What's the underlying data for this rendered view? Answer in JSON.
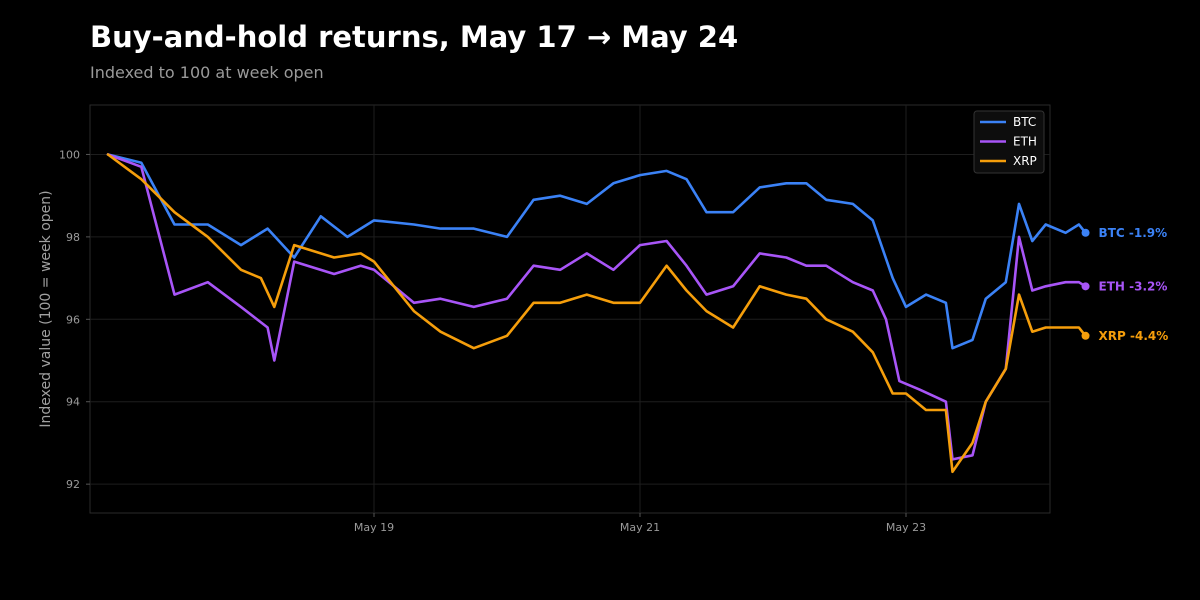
{
  "chart_data": {
    "type": "line",
    "title": "Buy-and-hold returns, May 17 → May 24",
    "subtitle": "Indexed to 100 at week open",
    "ylabel": "Indexed value (100 = week open)",
    "xlabel": "",
    "x_range_days": [
      0,
      7
    ],
    "ylim": [
      91.3,
      101.2
    ],
    "yticks": [
      92,
      94,
      96,
      98,
      100
    ],
    "xticks": [
      {
        "label": "May 19",
        "day": 2
      },
      {
        "label": "May 21",
        "day": 4
      },
      {
        "label": "May 23",
        "day": 6
      }
    ],
    "grid": true,
    "legend_position": "top-right",
    "series": [
      {
        "name": "BTC",
        "color": "#3b82f6",
        "end_label": "BTC -1.9%",
        "points": [
          [
            0,
            100
          ],
          [
            0.25,
            99.8
          ],
          [
            0.5,
            98.3
          ],
          [
            0.75,
            98.3
          ],
          [
            1,
            97.8
          ],
          [
            1.2,
            98.2
          ],
          [
            1.4,
            97.5
          ],
          [
            1.6,
            98.5
          ],
          [
            1.8,
            98.0
          ],
          [
            2,
            98.4
          ],
          [
            2.3,
            98.3
          ],
          [
            2.5,
            98.2
          ],
          [
            2.75,
            98.2
          ],
          [
            3,
            98.0
          ],
          [
            3.2,
            98.9
          ],
          [
            3.4,
            99.0
          ],
          [
            3.6,
            98.8
          ],
          [
            3.8,
            99.3
          ],
          [
            4,
            99.5
          ],
          [
            4.2,
            99.6
          ],
          [
            4.35,
            99.4
          ],
          [
            4.5,
            98.6
          ],
          [
            4.7,
            98.6
          ],
          [
            4.9,
            99.2
          ],
          [
            5.1,
            99.3
          ],
          [
            5.25,
            99.3
          ],
          [
            5.4,
            98.9
          ],
          [
            5.6,
            98.8
          ],
          [
            5.75,
            98.4
          ],
          [
            5.9,
            97.0
          ],
          [
            6,
            96.3
          ],
          [
            6.15,
            96.6
          ],
          [
            6.3,
            96.4
          ],
          [
            6.35,
            95.3
          ],
          [
            6.5,
            95.5
          ],
          [
            6.6,
            96.5
          ],
          [
            6.75,
            96.9
          ],
          [
            6.85,
            98.8
          ],
          [
            6.95,
            97.9
          ],
          [
            7.05,
            98.3
          ],
          [
            7.2,
            98.1
          ],
          [
            7.3,
            98.3
          ],
          [
            7.35,
            98.1
          ]
        ]
      },
      {
        "name": "ETH",
        "color": "#a855f7",
        "end_label": "ETH -3.2%",
        "points": [
          [
            0,
            100
          ],
          [
            0.25,
            99.7
          ],
          [
            0.5,
            96.6
          ],
          [
            0.75,
            96.9
          ],
          [
            1,
            96.3
          ],
          [
            1.2,
            95.8
          ],
          [
            1.25,
            95.0
          ],
          [
            1.4,
            97.4
          ],
          [
            1.7,
            97.1
          ],
          [
            1.9,
            97.3
          ],
          [
            2,
            97.2
          ],
          [
            2.3,
            96.4
          ],
          [
            2.5,
            96.5
          ],
          [
            2.75,
            96.3
          ],
          [
            3,
            96.5
          ],
          [
            3.2,
            97.3
          ],
          [
            3.4,
            97.2
          ],
          [
            3.6,
            97.6
          ],
          [
            3.8,
            97.2
          ],
          [
            4,
            97.8
          ],
          [
            4.2,
            97.9
          ],
          [
            4.35,
            97.3
          ],
          [
            4.5,
            96.6
          ],
          [
            4.7,
            96.8
          ],
          [
            4.9,
            97.6
          ],
          [
            5.1,
            97.5
          ],
          [
            5.25,
            97.3
          ],
          [
            5.4,
            97.3
          ],
          [
            5.6,
            96.9
          ],
          [
            5.75,
            96.7
          ],
          [
            5.85,
            96.0
          ],
          [
            5.95,
            94.5
          ],
          [
            6.1,
            94.3
          ],
          [
            6.3,
            94.0
          ],
          [
            6.35,
            92.6
          ],
          [
            6.5,
            92.7
          ],
          [
            6.6,
            94.0
          ],
          [
            6.75,
            94.8
          ],
          [
            6.85,
            98.0
          ],
          [
            6.95,
            96.7
          ],
          [
            7.05,
            96.8
          ],
          [
            7.2,
            96.9
          ],
          [
            7.3,
            96.9
          ],
          [
            7.35,
            96.8
          ]
        ]
      },
      {
        "name": "XRP",
        "color": "#f59e0b",
        "end_label": "XRP -4.4%",
        "points": [
          [
            0,
            100
          ],
          [
            0.25,
            99.4
          ],
          [
            0.5,
            98.6
          ],
          [
            0.75,
            98.0
          ],
          [
            1,
            97.2
          ],
          [
            1.15,
            97.0
          ],
          [
            1.25,
            96.3
          ],
          [
            1.4,
            97.8
          ],
          [
            1.7,
            97.5
          ],
          [
            1.9,
            97.6
          ],
          [
            2,
            97.4
          ],
          [
            2.3,
            96.2
          ],
          [
            2.5,
            95.7
          ],
          [
            2.75,
            95.3
          ],
          [
            3,
            95.6
          ],
          [
            3.2,
            96.4
          ],
          [
            3.4,
            96.4
          ],
          [
            3.6,
            96.6
          ],
          [
            3.8,
            96.4
          ],
          [
            4,
            96.4
          ],
          [
            4.2,
            97.3
          ],
          [
            4.35,
            96.7
          ],
          [
            4.5,
            96.2
          ],
          [
            4.7,
            95.8
          ],
          [
            4.9,
            96.8
          ],
          [
            5.1,
            96.6
          ],
          [
            5.25,
            96.5
          ],
          [
            5.4,
            96.0
          ],
          [
            5.6,
            95.7
          ],
          [
            5.75,
            95.2
          ],
          [
            5.9,
            94.2
          ],
          [
            6,
            94.2
          ],
          [
            6.15,
            93.8
          ],
          [
            6.3,
            93.8
          ],
          [
            6.35,
            92.3
          ],
          [
            6.5,
            93.0
          ],
          [
            6.6,
            94.0
          ],
          [
            6.75,
            94.8
          ],
          [
            6.85,
            96.6
          ],
          [
            6.95,
            95.7
          ],
          [
            7.05,
            95.8
          ],
          [
            7.2,
            95.8
          ],
          [
            7.3,
            95.8
          ],
          [
            7.35,
            95.6
          ]
        ]
      }
    ]
  }
}
